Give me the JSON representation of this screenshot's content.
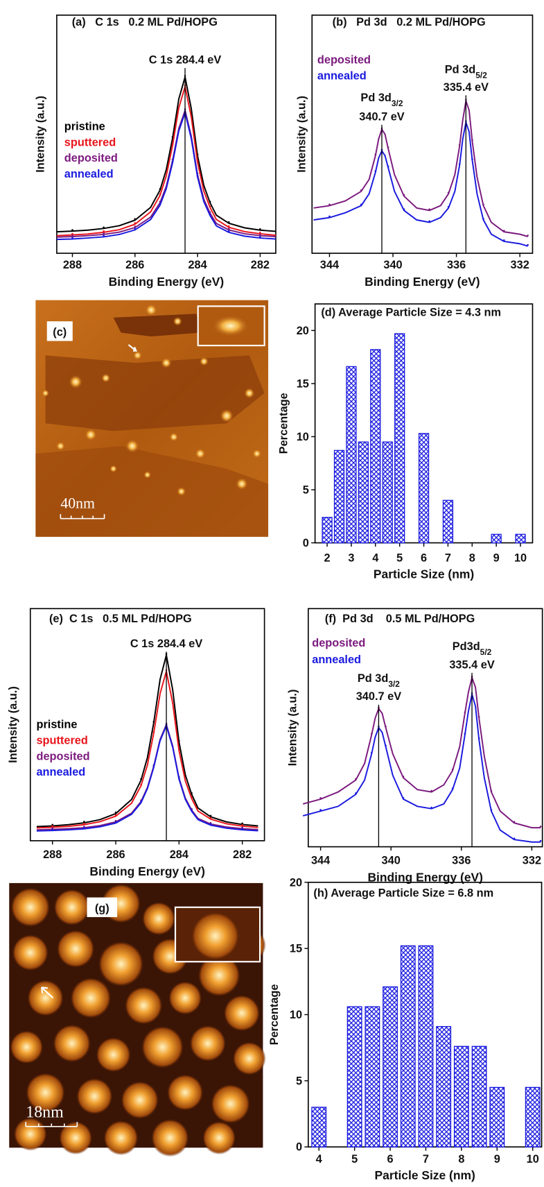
{
  "chart_data": [
    {
      "type": "line",
      "title": "(a)   C 1s   0.2 ML Pd/HOPG",
      "x_label": "Binding Energy (eV)",
      "y_label": "Intensity (a.u.)",
      "x": [
        288.5,
        288,
        287.5,
        287,
        286.5,
        286,
        285.5,
        285.2,
        285,
        284.8,
        284.6,
        284.4,
        284.2,
        284,
        283.8,
        283.6,
        283.4,
        283,
        282.5,
        282,
        281.5
      ],
      "xlim": [
        288.5,
        281.5
      ],
      "xticks": [
        288,
        286,
        284,
        282
      ],
      "ylim": [
        0,
        1
      ],
      "legend": "center left",
      "peaks": [
        {
          "x": 284.4,
          "label": "C 1s 284.4 eV"
        }
      ],
      "series": [
        {
          "name": "pristine",
          "color": "#000000",
          "values": [
            0.09,
            0.093,
            0.097,
            0.104,
            0.116,
            0.139,
            0.193,
            0.265,
            0.351,
            0.483,
            0.648,
            0.74,
            0.608,
            0.41,
            0.285,
            0.212,
            0.16,
            0.126,
            0.107,
            0.097,
            0.092
          ]
        },
        {
          "name": "sputtered",
          "color": "#e8141a",
          "values": [
            0.074,
            0.077,
            0.081,
            0.088,
            0.099,
            0.122,
            0.174,
            0.243,
            0.325,
            0.452,
            0.611,
            0.7,
            0.573,
            0.383,
            0.262,
            0.192,
            0.142,
            0.109,
            0.091,
            0.082,
            0.076
          ]
        },
        {
          "name": "deposited",
          "color": "#7b1a7e",
          "values": [
            0.068,
            0.07,
            0.074,
            0.079,
            0.089,
            0.108,
            0.152,
            0.212,
            0.281,
            0.389,
            0.524,
            0.6,
            0.492,
            0.33,
            0.227,
            0.168,
            0.125,
            0.098,
            0.082,
            0.074,
            0.07
          ]
        },
        {
          "name": "annealed",
          "color": "#1a1adf",
          "values": [
            0.058,
            0.06,
            0.064,
            0.069,
            0.079,
            0.098,
            0.142,
            0.202,
            0.271,
            0.379,
            0.514,
            0.59,
            0.482,
            0.32,
            0.217,
            0.158,
            0.115,
            0.088,
            0.072,
            0.064,
            0.06
          ]
        }
      ]
    },
    {
      "type": "line",
      "title": "(b)   Pd 3d   0.2 ML Pd/HOPG",
      "x_label": "Binding Energy (eV)",
      "y_label": "Intensity (a.u.)",
      "x": [
        345,
        344,
        343,
        342,
        341.5,
        341.1,
        340.9,
        340.7,
        340.5,
        340.3,
        339.9,
        339.3,
        338.5,
        337.7,
        337,
        336.5,
        336.1,
        335.8,
        335.6,
        335.4,
        335.2,
        335,
        334.7,
        334.3,
        333.8,
        333,
        332,
        331.5
      ],
      "xlim": [
        345.1,
        331.2
      ],
      "xticks": [
        344,
        340,
        336,
        332
      ],
      "ylim": [
        0,
        1
      ],
      "legend": "upper left",
      "peaks": [
        {
          "x": 340.7,
          "label": "Pd 3d",
          "sub": "3/2",
          "energy": "340.7 eV"
        },
        {
          "x": 335.4,
          "label": "Pd 3d",
          "sub": "5/2",
          "energy": "335.4 eV"
        }
      ],
      "series": [
        {
          "name": "deposited",
          "color": "#7b1a7e",
          "values": [
            0.19,
            0.2,
            0.22,
            0.26,
            0.31,
            0.41,
            0.48,
            0.52,
            0.5,
            0.44,
            0.33,
            0.24,
            0.19,
            0.18,
            0.2,
            0.25,
            0.33,
            0.45,
            0.56,
            0.64,
            0.6,
            0.47,
            0.32,
            0.2,
            0.13,
            0.09,
            0.08,
            0.07
          ]
        },
        {
          "name": "annealed",
          "color": "#1a1adf",
          "values": [
            0.14,
            0.15,
            0.17,
            0.2,
            0.25,
            0.34,
            0.4,
            0.43,
            0.41,
            0.36,
            0.26,
            0.18,
            0.14,
            0.13,
            0.15,
            0.19,
            0.26,
            0.37,
            0.48,
            0.55,
            0.51,
            0.39,
            0.25,
            0.14,
            0.08,
            0.05,
            0.04,
            0.03
          ]
        }
      ]
    },
    {
      "type": "bar",
      "title": "(d) Average Particle Size = 4.3 nm",
      "x_label": "Particle Size (nm)",
      "y_label": "Percentage",
      "x": [
        2,
        2.5,
        3,
        3.5,
        4,
        4.5,
        5,
        6,
        7,
        9,
        10
      ],
      "values": [
        2.4,
        8.7,
        16.6,
        9.5,
        18.2,
        9.5,
        19.7,
        10.3,
        4,
        0.8,
        0.8
      ],
      "color": "#1a1adf",
      "xlim": [
        1.5,
        10.5
      ],
      "xticks": [
        2,
        3,
        4,
        5,
        6,
        7,
        8,
        9,
        10
      ],
      "ylim": [
        0,
        22.5
      ],
      "yticks": [
        0,
        5,
        10,
        15,
        20
      ]
    },
    {
      "type": "line",
      "title": "(e)  C 1s   0.5 ML Pd/HOPG",
      "x_label": "Binding Energy (eV)",
      "y_label": "Intensity (a.u.)",
      "x": [
        288.5,
        288,
        287.5,
        287,
        286.5,
        286,
        285.5,
        285.2,
        285,
        284.8,
        284.6,
        284.4,
        284.2,
        284,
        283.8,
        283.6,
        283.4,
        283,
        282.5,
        282,
        281.5
      ],
      "xlim": [
        288.7,
        281.3
      ],
      "xticks": [
        288,
        286,
        284,
        282
      ],
      "ylim": [
        0,
        1
      ],
      "legend": "center left",
      "peaks": [
        {
          "x": 284.4,
          "label": "C 1s 284.4 eV"
        }
      ],
      "series": [
        {
          "name": "pristine",
          "color": "#000000",
          "values": [
            0.061,
            0.064,
            0.069,
            0.077,
            0.091,
            0.117,
            0.178,
            0.261,
            0.358,
            0.508,
            0.695,
            0.8,
            0.65,
            0.425,
            0.283,
            0.2,
            0.141,
            0.103,
            0.081,
            0.07,
            0.064
          ]
        },
        {
          "name": "sputtered",
          "color": "#e8141a",
          "values": [
            0.055,
            0.058,
            0.062,
            0.069,
            0.082,
            0.106,
            0.162,
            0.237,
            0.326,
            0.463,
            0.634,
            0.73,
            0.593,
            0.388,
            0.257,
            0.182,
            0.128,
            0.093,
            0.073,
            0.063,
            0.057
          ]
        },
        {
          "name": "deposited",
          "color": "#7b1a7e",
          "values": [
            0.047,
            0.049,
            0.052,
            0.056,
            0.065,
            0.081,
            0.119,
            0.169,
            0.229,
            0.321,
            0.436,
            0.5,
            0.408,
            0.27,
            0.183,
            0.132,
            0.096,
            0.072,
            0.059,
            0.052,
            0.048
          ]
        },
        {
          "name": "annealed",
          "color": "#1a1adf",
          "values": [
            0.042,
            0.044,
            0.047,
            0.051,
            0.06,
            0.076,
            0.114,
            0.164,
            0.224,
            0.316,
            0.431,
            0.495,
            0.403,
            0.265,
            0.178,
            0.127,
            0.091,
            0.067,
            0.054,
            0.047,
            0.043
          ]
        }
      ]
    },
    {
      "type": "line",
      "title": "(f)  Pd 3d    0.5 ML Pd/HOPG",
      "x_label": "Binding Energy (eV)",
      "y_label": "Intensity (a.u.)",
      "x": [
        345,
        344,
        343,
        342,
        341.5,
        341.1,
        340.9,
        340.7,
        340.5,
        340.3,
        339.9,
        339.3,
        338.5,
        337.7,
        337,
        336.5,
        336.1,
        335.8,
        335.6,
        335.4,
        335.2,
        335,
        334.7,
        334.3,
        333.8,
        333,
        332,
        331.5
      ],
      "xlim": [
        344.7,
        331.4
      ],
      "xticks": [
        344,
        340,
        336,
        332
      ],
      "ylim": [
        0,
        1
      ],
      "legend": "upper left",
      "peaks": [
        {
          "x": 340.7,
          "label": "Pd 3d",
          "sub": "3/2",
          "energy": "340.7 eV"
        },
        {
          "x": 335.4,
          "label": "Pd3d",
          "sub": "5/2",
          "energy": "335.4 eV"
        }
      ],
      "series": [
        {
          "name": "deposited",
          "color": "#7b1a7e",
          "values": [
            0.18,
            0.2,
            0.23,
            0.28,
            0.35,
            0.47,
            0.54,
            0.58,
            0.56,
            0.5,
            0.39,
            0.29,
            0.24,
            0.23,
            0.26,
            0.32,
            0.42,
            0.56,
            0.65,
            0.71,
            0.67,
            0.54,
            0.38,
            0.23,
            0.15,
            0.1,
            0.08,
            0.08
          ]
        },
        {
          "name": "annealed",
          "color": "#1a1adf",
          "values": [
            0.13,
            0.15,
            0.17,
            0.22,
            0.28,
            0.39,
            0.46,
            0.5,
            0.48,
            0.42,
            0.3,
            0.2,
            0.17,
            0.16,
            0.18,
            0.24,
            0.33,
            0.47,
            0.57,
            0.64,
            0.59,
            0.45,
            0.29,
            0.15,
            0.07,
            0.03,
            0.02,
            0.02
          ]
        }
      ]
    },
    {
      "type": "bar",
      "title": "(h) Average Particle Size = 6.8 nm",
      "x_label": "Particle Size (nm)",
      "y_label": "Percentage",
      "x": [
        4,
        5,
        5.5,
        6,
        6.5,
        7,
        7.5,
        8,
        8.5,
        9,
        10
      ],
      "values": [
        3,
        10.6,
        10.6,
        12.1,
        15.2,
        15.2,
        9.1,
        7.6,
        7.6,
        4.5,
        4.5
      ],
      "color": "#1a1adf",
      "xlim": [
        3.7,
        10.25
      ],
      "xticks": [
        4,
        5,
        6,
        7,
        8,
        9,
        10
      ],
      "ylim": [
        0,
        20
      ],
      "yticks": [
        0,
        5,
        10,
        15,
        20
      ]
    }
  ],
  "images": [
    {
      "label": "(c)",
      "scale": "40nm"
    },
    {
      "label": "(g)",
      "scale": "18nm"
    }
  ]
}
